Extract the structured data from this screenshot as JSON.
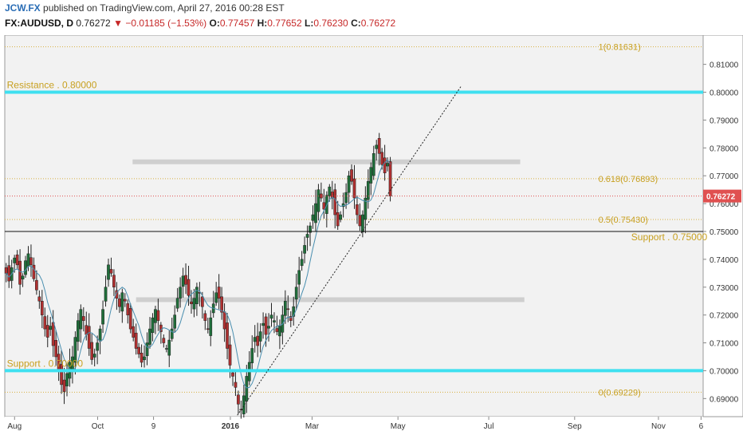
{
  "header": {
    "brand": "JCW.FX",
    "published_text": "published on TradingView.com, April 27, 2016 00:28 EST",
    "symbol": "FX:AUDUSD, D",
    "last": "0.76272",
    "change": "−0.01185 (−1.53%)",
    "open_label": "O:",
    "open": "0.77457",
    "high_label": "H:",
    "high": "0.77652",
    "low_label": "L:",
    "low": "0.76230",
    "close_label": "C:",
    "close": "0.76272",
    "down_arrow": "▼"
  },
  "colors": {
    "plot_bg": "#f2f2f2",
    "cyan_line": "#3fe0f0",
    "fib_text": "#c8a020",
    "up_candle": "#1f6e3a",
    "down_candle": "#b03030",
    "ma_line": "#4a8fb0",
    "price_tag": "#e05050"
  },
  "chart_data": {
    "type": "candlestick",
    "y_ticks": [
      "0.81000",
      "0.80000",
      "0.79000",
      "0.78000",
      "0.77000",
      "0.76000",
      "0.75000",
      "0.74000",
      "0.73000",
      "0.72000",
      "0.71000",
      "0.70000",
      "0.69000"
    ],
    "y_range": [
      0.6835,
      0.8205
    ],
    "x_ticks": [
      "Aug",
      "Oct",
      "9",
      "2016",
      "Mar",
      "May",
      "Jul",
      "Sep",
      "Nov",
      "6"
    ],
    "last_price_label": "0.76272",
    "horizontal_levels": [
      {
        "label": "Resistance .  0.80000",
        "value": 0.8,
        "style": "cyan"
      },
      {
        "label": "Support .  0.70000",
        "value": 0.7,
        "style": "cyan"
      },
      {
        "label": "Support .  0.75000",
        "value": 0.75,
        "style": "black"
      }
    ],
    "fibonacci": [
      {
        "label": "1(0.81631)",
        "value": 0.81631
      },
      {
        "label": "0.618(0.76893)",
        "value": 0.76893
      },
      {
        "label": "0.5(0.75430)",
        "value": 0.7543
      },
      {
        "label": "0(0.69229)",
        "value": 0.69229
      }
    ],
    "gray_zones": [
      {
        "value": 0.775,
        "x_from": 0.183,
        "x_to": 0.738
      },
      {
        "value": 0.7255,
        "x_from": 0.188,
        "x_to": 0.744
      }
    ],
    "trendline": {
      "from": [
        0.333,
        0.684
      ],
      "to": [
        0.653,
        0.802
      ]
    },
    "closes": [
      0.735,
      0.7322,
      0.737,
      0.7405,
      0.738,
      0.731,
      0.734,
      0.7395,
      0.742,
      0.738,
      0.733,
      0.729,
      0.725,
      0.72,
      0.715,
      0.712,
      0.716,
      0.709,
      0.705,
      0.7,
      0.695,
      0.6925,
      0.699,
      0.703,
      0.705,
      0.712,
      0.718,
      0.722,
      0.718,
      0.713,
      0.708,
      0.704,
      0.706,
      0.71,
      0.715,
      0.722,
      0.73,
      0.738,
      0.735,
      0.73,
      0.726,
      0.723,
      0.728,
      0.725,
      0.72,
      0.715,
      0.712,
      0.708,
      0.706,
      0.703,
      0.705,
      0.71,
      0.715,
      0.719,
      0.722,
      0.718,
      0.714,
      0.71,
      0.708,
      0.711,
      0.715,
      0.72,
      0.726,
      0.73,
      0.734,
      0.731,
      0.727,
      0.724,
      0.726,
      0.73,
      0.728,
      0.723,
      0.718,
      0.715,
      0.719,
      0.724,
      0.728,
      0.726,
      0.721,
      0.715,
      0.708,
      0.702,
      0.698,
      0.694,
      0.688,
      0.686,
      0.691,
      0.698,
      0.703,
      0.708,
      0.712,
      0.709,
      0.714,
      0.717,
      0.713,
      0.716,
      0.72,
      0.718,
      0.714,
      0.716,
      0.72,
      0.725,
      0.722,
      0.718,
      0.723,
      0.73,
      0.736,
      0.74,
      0.745,
      0.749,
      0.752,
      0.756,
      0.76,
      0.765,
      0.762,
      0.758,
      0.763,
      0.766,
      0.762,
      0.756,
      0.752,
      0.756,
      0.76,
      0.764,
      0.77,
      0.768,
      0.762,
      0.756,
      0.752,
      0.756,
      0.762,
      0.768,
      0.773,
      0.778,
      0.781,
      0.778,
      0.774,
      0.771,
      0.7745,
      0.7627
    ]
  }
}
